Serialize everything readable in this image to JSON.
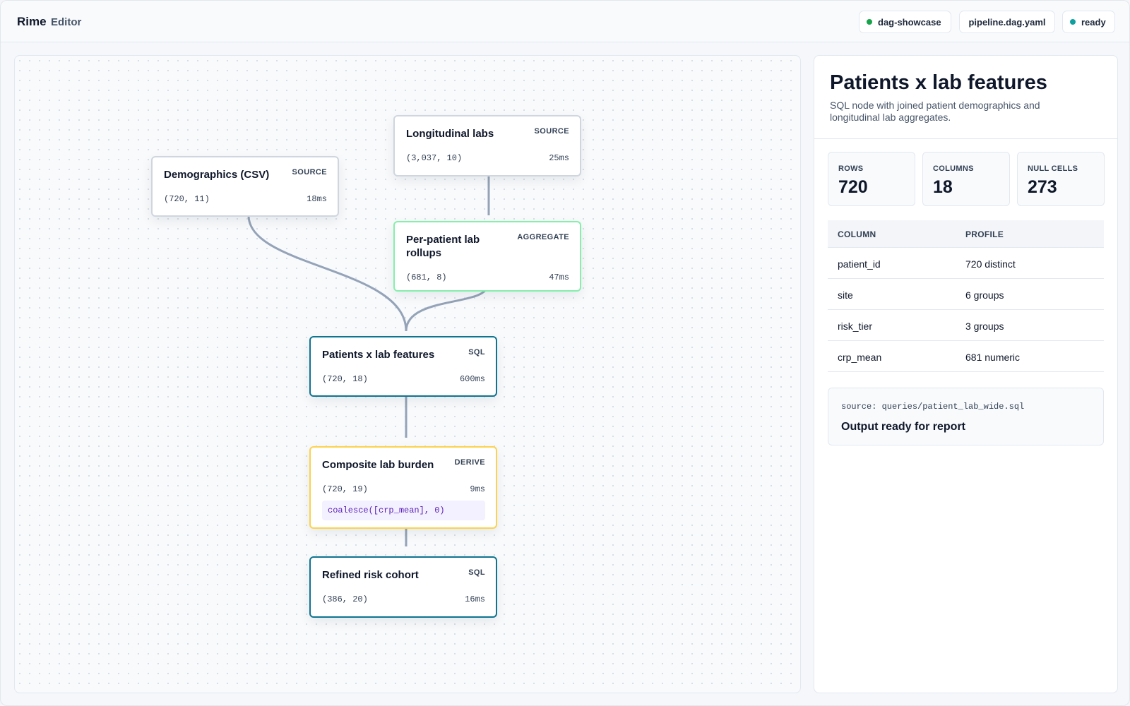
{
  "app": {
    "name": "Rime",
    "view": "Editor"
  },
  "header": {
    "project": {
      "label": "dag-showcase",
      "status_color": "#16a34a"
    },
    "file": {
      "label": "pipeline.dag.yaml"
    },
    "status": {
      "label": "ready",
      "status_color": "#0e9f9f"
    }
  },
  "graph": {
    "nodes": [
      {
        "id": "demographics",
        "title": "Demographics (CSV)",
        "kind": "SOURCE",
        "shape": "(720, 11)",
        "time": "18ms"
      },
      {
        "id": "labs",
        "title": "Longitudinal labs",
        "kind": "SOURCE",
        "shape": "(3,037, 10)",
        "time": "25ms"
      },
      {
        "id": "rollups",
        "title": "Per-patient lab rollups",
        "kind": "AGGREGATE",
        "shape": "(681, 8)",
        "time": "47ms"
      },
      {
        "id": "features",
        "title": "Patients x lab features",
        "kind": "SQL",
        "shape": "(720, 18)",
        "time": "600ms"
      },
      {
        "id": "burden",
        "title": "Composite lab burden",
        "kind": "DERIVE",
        "shape": "(720, 19)",
        "time": "9ms",
        "expression": "coalesce([crp_mean], 0)"
      },
      {
        "id": "cohort",
        "title": "Refined risk cohort",
        "kind": "SQL",
        "shape": "(386, 20)",
        "time": "16ms"
      }
    ],
    "edges": [
      [
        "demographics",
        "features"
      ],
      [
        "labs",
        "rollups"
      ],
      [
        "rollups",
        "features"
      ],
      [
        "features",
        "burden"
      ],
      [
        "burden",
        "cohort"
      ]
    ],
    "edge_color": "#94a3b8"
  },
  "inspector": {
    "title": "Patients x lab features",
    "description": "SQL node with joined patient demographics and longitudinal lab aggregates.",
    "stats": {
      "rows": {
        "label": "ROWS",
        "value": "720"
      },
      "columns": {
        "label": "COLUMNS",
        "value": "18"
      },
      "nulls": {
        "label": "NULL CELLS",
        "value": "273"
      }
    },
    "profile": {
      "headers": [
        "COLUMN",
        "PROFILE"
      ],
      "rows": [
        [
          "patient_id",
          "720 distinct"
        ],
        [
          "site",
          "6 groups"
        ],
        [
          "risk_tier",
          "3 groups"
        ],
        [
          "crp_mean",
          "681 numeric"
        ]
      ]
    },
    "source_path": "source: queries/patient_lab_wide.sql",
    "output_status": "Output ready for report"
  }
}
